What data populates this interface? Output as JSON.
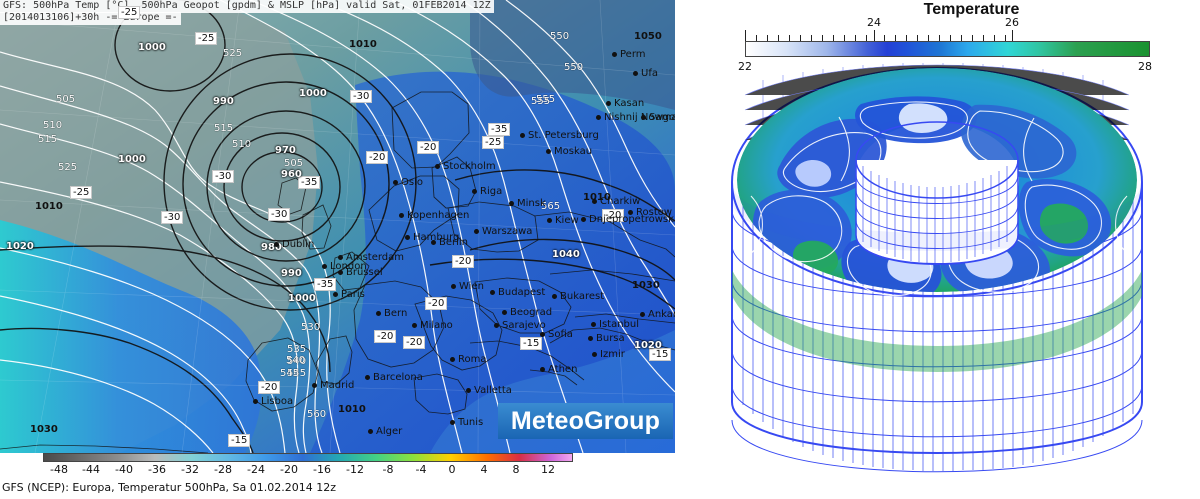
{
  "map": {
    "header_line1": "GFS: 500hPa Temp [°C], 500hPa Geopot [gpdm] & MSLP [hPa] valid Sat, 01FEB2014 12Z",
    "header_line2": "[2014013106]+30h -= Europe =-",
    "brand": "MeteoGroup",
    "caption": "GFS (NCEP): Europa, Temperatur 500hPa, Sa 01.02.2014 12z",
    "scale_labels": [
      "-48",
      "-44",
      "-40",
      "-36",
      "-32",
      "-28",
      "-24",
      "-20",
      "-16",
      "-12",
      "-8",
      "-4",
      "0",
      "4",
      "8",
      "12"
    ],
    "temp_boxes": [
      "-25",
      "-25",
      "-30",
      "-35",
      "-30",
      "-30",
      "-20",
      "-20",
      "-25",
      "-30",
      "-25",
      "-35",
      "-20",
      "-35",
      "-20",
      "-20",
      "-20",
      "-15",
      "-15",
      "-20",
      "-20",
      "-15"
    ],
    "pressure_labels": [
      "1000",
      "1000",
      "1010",
      "1010",
      "1020",
      "1000",
      "990",
      "960",
      "970",
      "980",
      "990",
      "1000",
      "1040",
      "1030",
      "1050",
      "1010",
      "1030",
      "1020",
      "1010"
    ],
    "geopot_labels": [
      "505",
      "510",
      "515",
      "525",
      "505",
      "510",
      "515",
      "525",
      "530",
      "535",
      "540",
      "545",
      "550",
      "555",
      "560",
      "565",
      "540",
      "545",
      "550",
      "555"
    ],
    "cities": [
      "Perm",
      "Ufa",
      "Kasan",
      "Nishnij Nowgorod",
      "Samara",
      "St. Petersburg",
      "Moskau",
      "Stockholm",
      "Oslo",
      "Riga",
      "Minsk",
      "Kopenhagen",
      "Hamburg",
      "Berlin",
      "Warszawa",
      "Kiew",
      "Charkiw",
      "Dnjepropetrowsk",
      "Rostow",
      "Dublin",
      "Amsterdam",
      "London",
      "Brüssel",
      "Paris",
      "Wien",
      "Budapest",
      "Bukarest",
      "Bern",
      "Milano",
      "Beograd",
      "Sarajevo",
      "Sofia",
      "Istanbul",
      "Ankara",
      "Bursa",
      "Izmir",
      "Madrid",
      "Lisboa",
      "Barcelona",
      "Roma",
      "Tunis",
      "Alger",
      "Athen",
      "Valletta"
    ]
  },
  "temperature_panel": {
    "title": "Temperature",
    "colorbar_labels": [
      "22",
      "24",
      "26",
      "28"
    ],
    "colorbar_top_labels": [
      "24",
      "26"
    ],
    "colorbar_bottom_labels": [
      "22",
      "28"
    ]
  }
}
